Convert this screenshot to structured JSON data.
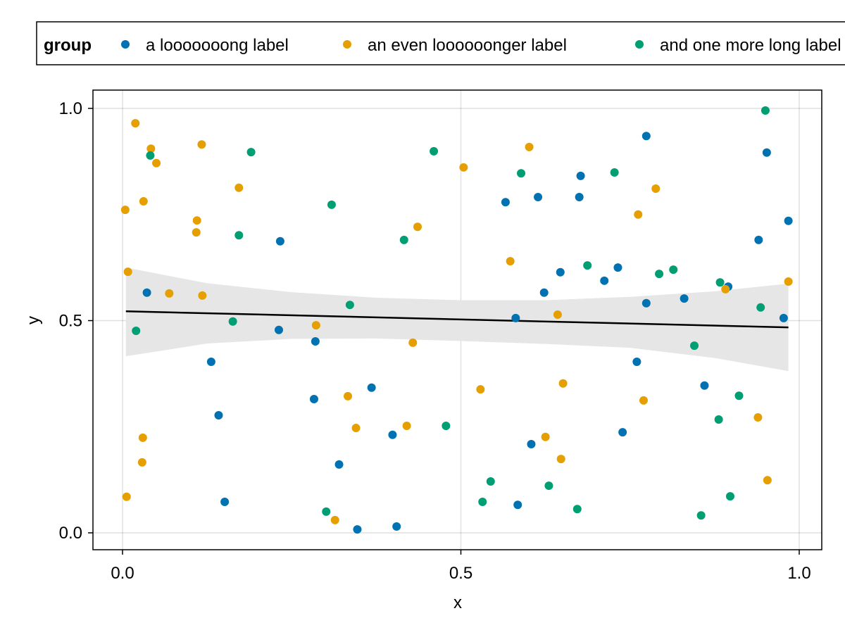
{
  "chart_data": {
    "type": "scatter",
    "xlabel": "x",
    "ylabel": "y",
    "xlim": [
      -0.045,
      1.033
    ],
    "ylim": [
      -0.041,
      1.044
    ],
    "xticks": [
      {
        "value": 0.0,
        "label": "0.0"
      },
      {
        "value": 0.5,
        "label": "0.5"
      },
      {
        "value": 1.0,
        "label": "1.0"
      }
    ],
    "yticks": [
      {
        "value": 0.0,
        "label": "0.0"
      },
      {
        "value": 0.5,
        "label": "0.5"
      },
      {
        "value": 1.0,
        "label": "1.0"
      }
    ],
    "grid": true,
    "legend": {
      "title": "group",
      "placement": "top",
      "entries": [
        "a looooooong label",
        "an even loooooonger label",
        "and one more long label"
      ]
    },
    "series": [
      {
        "name": "a looooooong label",
        "color": "#0072b2",
        "points": [
          [
            0.036,
            0.566
          ],
          [
            0.131,
            0.403
          ],
          [
            0.142,
            0.277
          ],
          [
            0.151,
            0.073
          ],
          [
            0.231,
            0.478
          ],
          [
            0.233,
            0.687
          ],
          [
            0.283,
            0.315
          ],
          [
            0.285,
            0.451
          ],
          [
            0.32,
            0.161
          ],
          [
            0.347,
            0.008
          ],
          [
            0.368,
            0.342
          ],
          [
            0.399,
            0.231
          ],
          [
            0.405,
            0.015
          ],
          [
            0.566,
            0.779
          ],
          [
            0.581,
            0.506
          ],
          [
            0.584,
            0.066
          ],
          [
            0.604,
            0.209
          ],
          [
            0.614,
            0.791
          ],
          [
            0.623,
            0.566
          ],
          [
            0.647,
            0.614
          ],
          [
            0.675,
            0.791
          ],
          [
            0.677,
            0.841
          ],
          [
            0.712,
            0.594
          ],
          [
            0.732,
            0.625
          ],
          [
            0.739,
            0.237
          ],
          [
            0.76,
            0.403
          ],
          [
            0.774,
            0.935
          ],
          [
            0.774,
            0.541
          ],
          [
            0.83,
            0.552
          ],
          [
            0.86,
            0.347
          ],
          [
            0.895,
            0.58
          ],
          [
            0.94,
            0.69
          ],
          [
            0.952,
            0.896
          ],
          [
            0.977,
            0.506
          ],
          [
            0.984,
            0.735
          ]
        ]
      },
      {
        "name": "an even loooooonger label",
        "color": "#e69f00",
        "points": [
          [
            0.004,
            0.761
          ],
          [
            0.006,
            0.085
          ],
          [
            0.008,
            0.615
          ],
          [
            0.019,
            0.965
          ],
          [
            0.029,
            0.166
          ],
          [
            0.03,
            0.224
          ],
          [
            0.031,
            0.781
          ],
          [
            0.042,
            0.905
          ],
          [
            0.05,
            0.871
          ],
          [
            0.069,
            0.564
          ],
          [
            0.109,
            0.708
          ],
          [
            0.11,
            0.736
          ],
          [
            0.117,
            0.915
          ],
          [
            0.118,
            0.559
          ],
          [
            0.172,
            0.813
          ],
          [
            0.286,
            0.489
          ],
          [
            0.314,
            0.03
          ],
          [
            0.333,
            0.322
          ],
          [
            0.345,
            0.247
          ],
          [
            0.42,
            0.252
          ],
          [
            0.429,
            0.448
          ],
          [
            0.436,
            0.721
          ],
          [
            0.504,
            0.861
          ],
          [
            0.529,
            0.338
          ],
          [
            0.573,
            0.64
          ],
          [
            0.601,
            0.909
          ],
          [
            0.643,
            0.514
          ],
          [
            0.625,
            0.226
          ],
          [
            0.648,
            0.174
          ],
          [
            0.651,
            0.352
          ],
          [
            0.762,
            0.75
          ],
          [
            0.77,
            0.312
          ],
          [
            0.788,
            0.811
          ],
          [
            0.891,
            0.574
          ],
          [
            0.939,
            0.272
          ],
          [
            0.953,
            0.124
          ],
          [
            0.984,
            0.592
          ]
        ]
      },
      {
        "name": "and one more long label",
        "color": "#009e73",
        "points": [
          [
            0.02,
            0.476
          ],
          [
            0.041,
            0.889
          ],
          [
            0.163,
            0.498
          ],
          [
            0.172,
            0.701
          ],
          [
            0.19,
            0.897
          ],
          [
            0.301,
            0.05
          ],
          [
            0.309,
            0.773
          ],
          [
            0.336,
            0.537
          ],
          [
            0.416,
            0.69
          ],
          [
            0.46,
            0.899
          ],
          [
            0.478,
            0.252
          ],
          [
            0.532,
            0.073
          ],
          [
            0.544,
            0.121
          ],
          [
            0.589,
            0.847
          ],
          [
            0.63,
            0.111
          ],
          [
            0.672,
            0.056
          ],
          [
            0.687,
            0.63
          ],
          [
            0.727,
            0.849
          ],
          [
            0.793,
            0.61
          ],
          [
            0.814,
            0.62
          ],
          [
            0.845,
            0.441
          ],
          [
            0.855,
            0.041
          ],
          [
            0.881,
            0.267
          ],
          [
            0.883,
            0.59
          ],
          [
            0.898,
            0.086
          ],
          [
            0.911,
            0.323
          ],
          [
            0.943,
            0.531
          ],
          [
            0.95,
            0.995
          ]
        ]
      }
    ],
    "fit": {
      "line": [
        [
          0.005,
          0.522
        ],
        [
          0.984,
          0.484
        ]
      ],
      "band": {
        "x": [
          0.005,
          0.125,
          0.25,
          0.375,
          0.5,
          0.625,
          0.75,
          0.875,
          0.984
        ],
        "upper": [
          0.625,
          0.588,
          0.567,
          0.554,
          0.548,
          0.548,
          0.556,
          0.569,
          0.587
        ],
        "lower": [
          0.416,
          0.446,
          0.457,
          0.458,
          0.452,
          0.445,
          0.436,
          0.412,
          0.381
        ]
      }
    }
  }
}
